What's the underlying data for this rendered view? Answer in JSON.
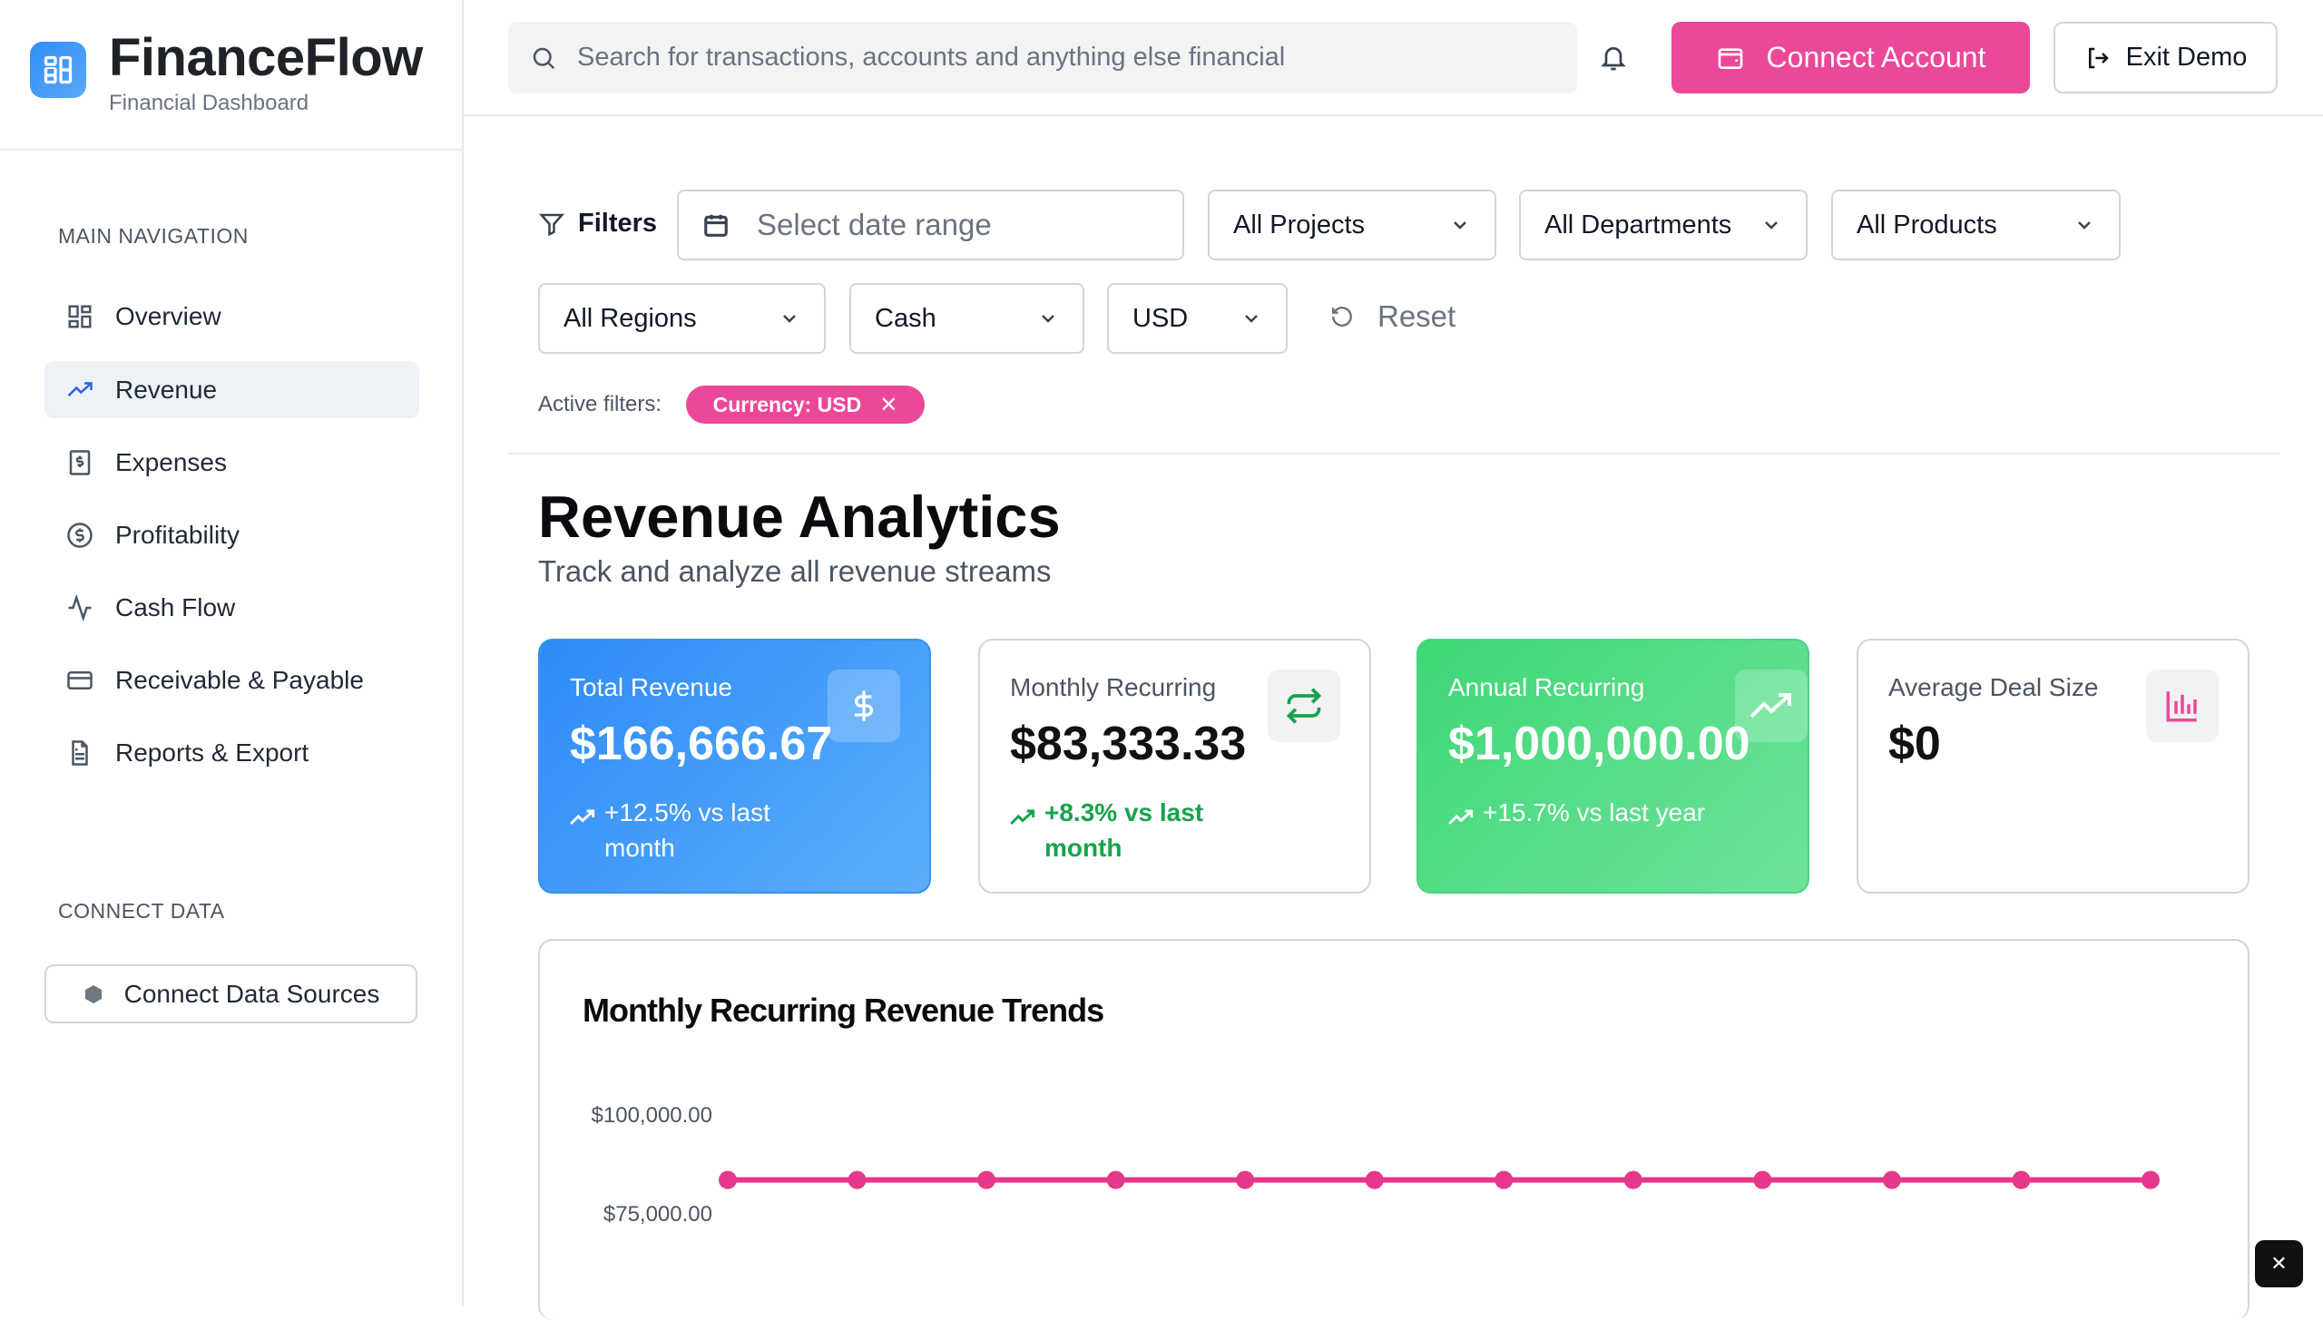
{
  "brand": {
    "name": "FinanceFlow",
    "subtitle": "Financial Dashboard"
  },
  "sidebar": {
    "main_nav_title": "MAIN NAVIGATION",
    "items": [
      {
        "label": "Overview",
        "icon": "grid-icon"
      },
      {
        "label": "Revenue",
        "icon": "trending-up-icon",
        "active": true
      },
      {
        "label": "Expenses",
        "icon": "receipt-icon"
      },
      {
        "label": "Profitability",
        "icon": "dollar-circle-icon"
      },
      {
        "label": "Cash Flow",
        "icon": "activity-icon"
      },
      {
        "label": "Receivable & Payable",
        "icon": "credit-card-icon"
      },
      {
        "label": "Reports & Export",
        "icon": "file-text-icon"
      }
    ],
    "connect_title": "CONNECT DATA",
    "connect_button": "Connect Data Sources"
  },
  "header": {
    "search_placeholder": "Search for transactions, accounts and anything else financial",
    "connect_account": "Connect Account",
    "exit_demo": "Exit Demo"
  },
  "filters": {
    "label": "Filters",
    "date_placeholder": "Select date range",
    "projects": "All Projects",
    "departments": "All Departments",
    "products": "All Products",
    "regions": "All Regions",
    "basis": "Cash",
    "currency": "USD",
    "reset": "Reset",
    "active_label": "Active filters:",
    "active_chip": "Currency: USD"
  },
  "page": {
    "title": "Revenue Analytics",
    "subtitle": "Track and analyze all revenue streams"
  },
  "cards": [
    {
      "label": "Total Revenue",
      "value": "$166,666.67",
      "change": "+12.5% vs last month",
      "icon": "dollar-icon"
    },
    {
      "label": "Monthly Recurring",
      "value": "$83,333.33",
      "change": "+8.3% vs last month",
      "icon": "repeat-icon"
    },
    {
      "label": "Annual Recurring",
      "value": "$1,000,000.00",
      "change": "+15.7% vs last year",
      "icon": "trending-up-icon"
    },
    {
      "label": "Average Deal Size",
      "value": "$0",
      "icon": "bar-chart-icon"
    }
  ],
  "colors": {
    "accent": "#ec4899",
    "blue": "#2d8bf6",
    "green": "#3fd776"
  },
  "chart_data": {
    "type": "line",
    "title": "Monthly Recurring Revenue Trends",
    "yticks": [
      "$100,000.00",
      "$75,000.00"
    ],
    "ytick_values": [
      100000,
      75000
    ],
    "series": [
      {
        "values": [
          83333.33,
          83333.33,
          83333.33,
          83333.33,
          83333.33,
          83333.33,
          83333.33,
          83333.33,
          83333.33,
          83333.33,
          83333.33,
          83333.33
        ],
        "color": "#e6378a"
      }
    ],
    "grid": false
  }
}
